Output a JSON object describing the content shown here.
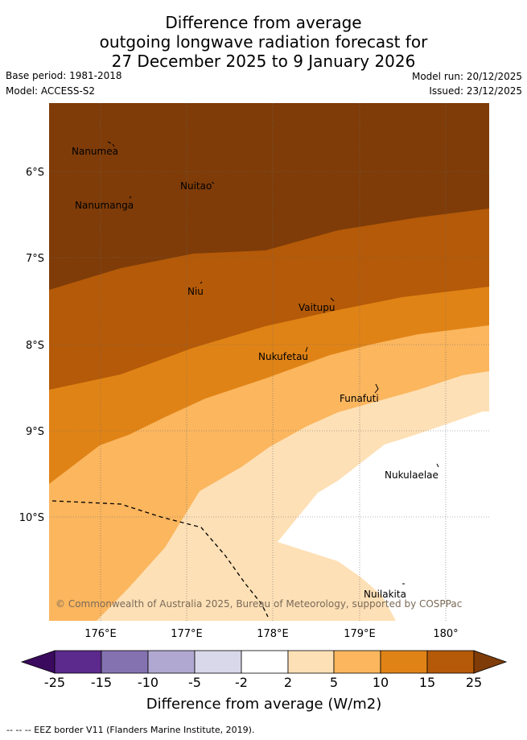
{
  "header": {
    "title_line1": "Difference from average",
    "title_line2": "outgoing longwave radiation forecast for",
    "title_line3": "27 December 2025 to 9 January 2026",
    "base_period": "Base period: 1981-2018",
    "model": "Model: ACCESS-S2",
    "model_run": "Model run: 20/12/2025",
    "issued": "Issued: 23/12/2025"
  },
  "map": {
    "lat_labels": [
      "6°S",
      "7°S",
      "8°S",
      "9°S",
      "10°S"
    ],
    "lon_labels": [
      "176°E",
      "177°E",
      "178°E",
      "179°E",
      "180°"
    ],
    "places": [
      "Nanumea",
      "Nuitao",
      "Nanumanga",
      "Niu",
      "Vaitupu",
      "Nukufetau",
      "Funafuti",
      "Nukulaelae",
      "Nuilakita"
    ],
    "copyright": "© Commonwealth of Australia 2025, Bureau of Meteorology, supported by COSPPac"
  },
  "colorbar": {
    "labels": [
      "-25",
      "-15",
      "-10",
      "-5",
      "-2",
      "2",
      "5",
      "10",
      "15",
      "25"
    ],
    "title": "Difference from average (W/m2)",
    "colors": {
      "below": "#3a0a5e",
      "m25_15": "#5b2a8c",
      "m15_10": "#8472b0",
      "m10_5": "#b1a8d1",
      "m5_2": "#d8d8ea",
      "neutral": "#ffffff",
      "p2_5": "#fee0b6",
      "p5_10": "#fbb65e",
      "p10_15": "#e08316",
      "p15_25": "#b45a08",
      "above": "#7f3c08"
    }
  },
  "footer": {
    "legend": "--  --  -- EEZ border V11 (Flanders Marine Institute, 2019)."
  }
}
